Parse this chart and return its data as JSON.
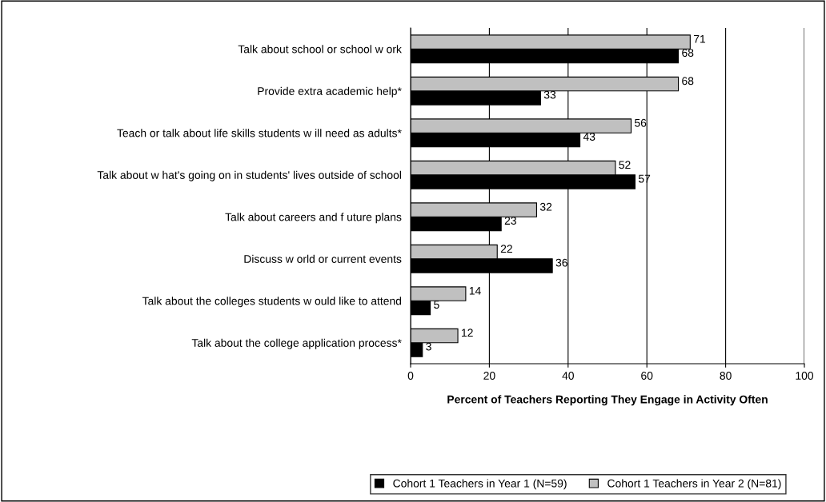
{
  "chart_data": {
    "type": "bar",
    "orientation": "horizontal",
    "xlabel": "Percent of Teachers Reporting They Engage in Activity Often",
    "categories": [
      "Talk about school or school w ork",
      "Provide extra academic help*",
      "Teach or talk about life skills students w ill need as adults*",
      "Talk about w hat's going on in students' lives outside of school",
      "Talk about careers and f uture plans",
      "Discuss w orld or current events",
      "Talk about the colleges students w ould like to attend",
      "Talk about the college application process*"
    ],
    "series": [
      {
        "name": "Cohort 1 Teachers in Year 1 (N=59)",
        "color": "#000000",
        "values": [
          68,
          33,
          43,
          57,
          23,
          36,
          5,
          3
        ]
      },
      {
        "name": "Cohort 1 Teachers in Year 2 (N=81)",
        "color": "#c0c0c0",
        "values": [
          71,
          68,
          56,
          52,
          32,
          22,
          14,
          12
        ]
      }
    ],
    "xlim": [
      0,
      100
    ],
    "xticks": [
      0,
      20,
      40,
      60,
      80,
      100
    ],
    "grid": "x",
    "legend": "bottom",
    "data_labels": true
  }
}
